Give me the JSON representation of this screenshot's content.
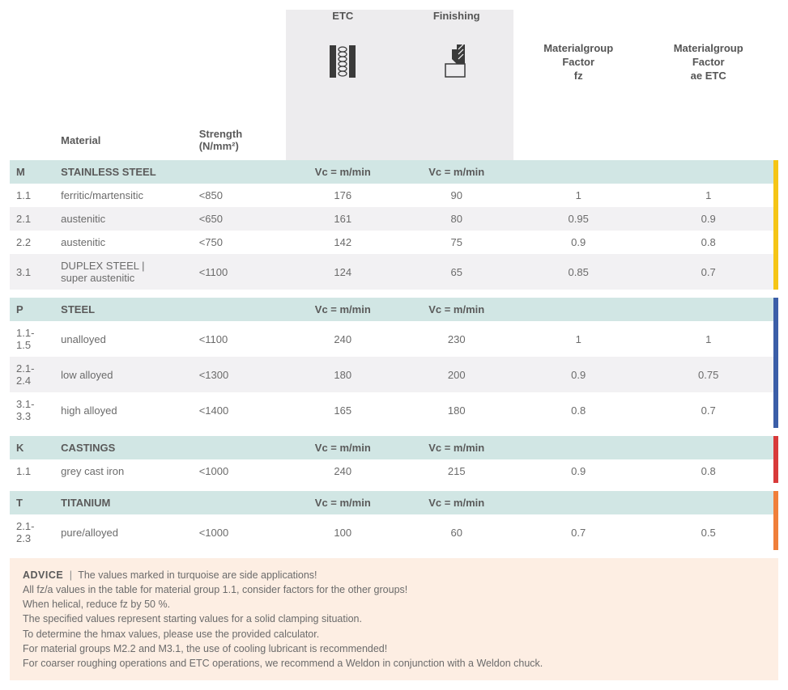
{
  "columns": {
    "material": "Material",
    "strength": "Strength\n(N/mm²)",
    "ops": [
      {
        "title": "ETC",
        "sub": "Vc = m/min"
      },
      {
        "title": "Finishing",
        "sub": "Vc = m/min"
      }
    ],
    "factors": [
      "Materialgroup\nFactor\nfz",
      "Materialgroup\nFactor\nae ETC"
    ]
  },
  "sections": [
    {
      "code": "M",
      "name": "STAINLESS STEEL",
      "stripe": "#f5c516",
      "rows": [
        {
          "code": "1.1",
          "mat": "ferritic/martensitic",
          "str": "<850",
          "etc": "176",
          "fin": "90",
          "fz": "1",
          "ae": "1",
          "zebra": false
        },
        {
          "code": "2.1",
          "mat": "austenitic",
          "str": "<650",
          "etc": "161",
          "fin": "80",
          "fz": "0.95",
          "ae": "0.9",
          "zebra": true
        },
        {
          "code": "2.2",
          "mat": "austenitic",
          "str": "<750",
          "etc": "142",
          "fin": "75",
          "fz": "0.9",
          "ae": "0.8",
          "zebra": false
        },
        {
          "code": "3.1",
          "mat": "DUPLEX STEEL |\nsuper austenitic",
          "str": "<1100",
          "etc": "124",
          "fin": "65",
          "fz": "0.85",
          "ae": "0.7",
          "zebra": true
        }
      ]
    },
    {
      "code": "P",
      "name": "STEEL",
      "stripe": "#3b5ea8",
      "rows": [
        {
          "code": "1.1-1.5",
          "mat": "unalloyed",
          "str": "<1100",
          "etc": "240",
          "fin": "230",
          "fz": "1",
          "ae": "1",
          "zebra": false
        },
        {
          "code": "2.1-2.4",
          "mat": "low alloyed",
          "str": "<1300",
          "etc": "180",
          "fin": "200",
          "fz": "0.9",
          "ae": "0.75",
          "zebra": true
        },
        {
          "code": "3.1-3.3",
          "mat": "high alloyed",
          "str": "<1400",
          "etc": "165",
          "fin": "180",
          "fz": "0.8",
          "ae": "0.7",
          "zebra": false
        }
      ]
    },
    {
      "code": "K",
      "name": "CASTINGS",
      "stripe": "#d83a3a",
      "rows": [
        {
          "code": "1.1",
          "mat": "grey cast iron",
          "str": "<1000",
          "etc": "240",
          "fin": "215",
          "fz": "0.9",
          "ae": "0.8",
          "zebra": false
        }
      ]
    },
    {
      "code": "T",
      "name": "TITANIUM",
      "stripe": "#f07f3a",
      "rows": [
        {
          "code": "2.1-2.3",
          "mat": "pure/alloyed",
          "str": "<1000",
          "etc": "100",
          "fin": "60",
          "fz": "0.7",
          "ae": "0.5",
          "zebra": false
        }
      ]
    }
  ],
  "advice": {
    "lead": "ADVICE",
    "sep": "|",
    "first": "The values marked in turquoise are side applications!",
    "lines": [
      "All fz/a values in the table for material group 1.1, consider factors for the other groups!",
      "When helical, reduce fz by 50 %.",
      "The specified values represent starting values for a solid clamping situation.",
      "To determine the hmax values, please use the provided calculator.",
      "For material groups M2.2 and M3.1, the use of cooling lubricant is recommended!",
      "For coarser roughing operations and ETC operations, we recommend a Weldon in conjunction with a Weldon chuck."
    ]
  },
  "col_widths": [
    "55",
    "170",
    "115",
    "140",
    "140",
    "160",
    "160",
    "6"
  ]
}
